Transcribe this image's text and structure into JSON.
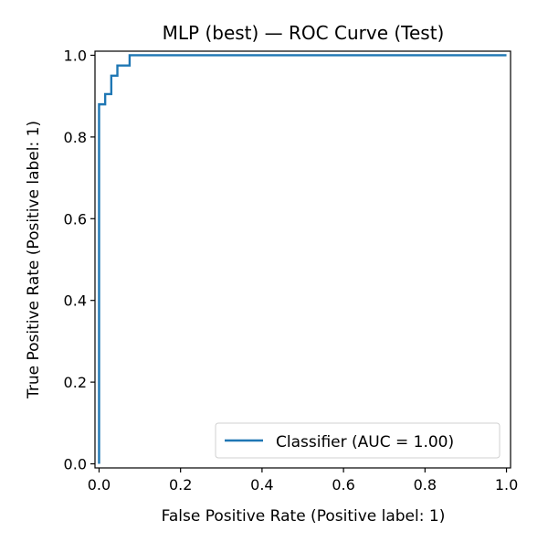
{
  "chart_data": {
    "type": "line",
    "title": "MLP (best) — ROC Curve (Test)",
    "xlabel": "False Positive Rate (Positive label: 1)",
    "ylabel": "True Positive Rate (Positive label: 1)",
    "xlim": [
      -0.01,
      1.01
    ],
    "ylim": [
      -0.01,
      1.01
    ],
    "x_ticks": [
      0.0,
      0.2,
      0.4,
      0.6,
      0.8,
      1.0
    ],
    "x_tick_labels": [
      "0.0",
      "0.2",
      "0.4",
      "0.6",
      "0.8",
      "1.0"
    ],
    "y_ticks": [
      0.0,
      0.2,
      0.4,
      0.6,
      0.8,
      1.0
    ],
    "y_tick_labels": [
      "0.0",
      "0.2",
      "0.4",
      "0.6",
      "0.8",
      "1.0"
    ],
    "grid": false,
    "legend": {
      "placement": "lower-right",
      "entries": [
        "Classifier (AUC = 1.00)"
      ]
    },
    "series": [
      {
        "name": "Classifier (AUC = 1.00)",
        "color": "#1f77b4",
        "drawstyle": "steps",
        "x": [
          0.0,
          0.0,
          0.0,
          0.0,
          0.015,
          0.015,
          0.03,
          0.03,
          0.045,
          0.045,
          0.075,
          0.075,
          1.0
        ],
        "y": [
          0.0,
          0.0,
          0.88,
          0.88,
          0.88,
          0.905,
          0.905,
          0.95,
          0.95,
          0.975,
          0.975,
          1.0,
          1.0
        ]
      }
    ]
  }
}
